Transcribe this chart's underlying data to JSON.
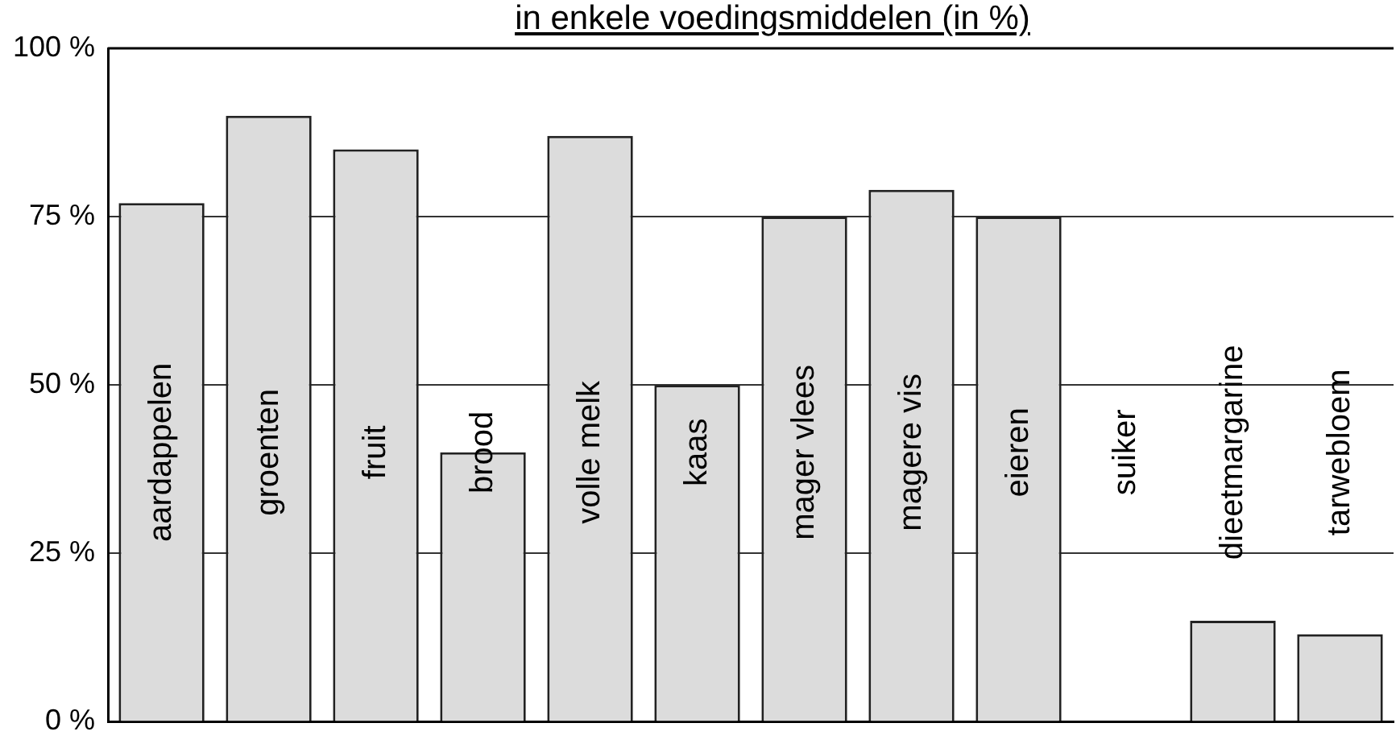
{
  "chart_data": {
    "type": "bar",
    "title": "in enkele voedingsmiddelen (in %)",
    "categories": [
      "aardappelen",
      "groenten",
      "fruit",
      "brood",
      "volle melk",
      "kaas",
      "mager vlees",
      "magere vis",
      "eieren",
      "suiker",
      "dieetmargarine",
      "tarwebloem"
    ],
    "values": [
      77,
      90,
      85,
      40,
      87,
      50,
      75,
      79,
      75,
      0,
      15,
      13
    ],
    "color": "#dcdcdc",
    "ylim": [
      0,
      100
    ],
    "yticks": [
      {
        "value": 0,
        "label": "0 %"
      },
      {
        "value": 25,
        "label": "25 %"
      },
      {
        "value": 50,
        "label": "50 %"
      },
      {
        "value": 75,
        "label": "75 %"
      },
      {
        "value": 100,
        "label": "100 %"
      }
    ],
    "grid": "y",
    "legend": false
  }
}
